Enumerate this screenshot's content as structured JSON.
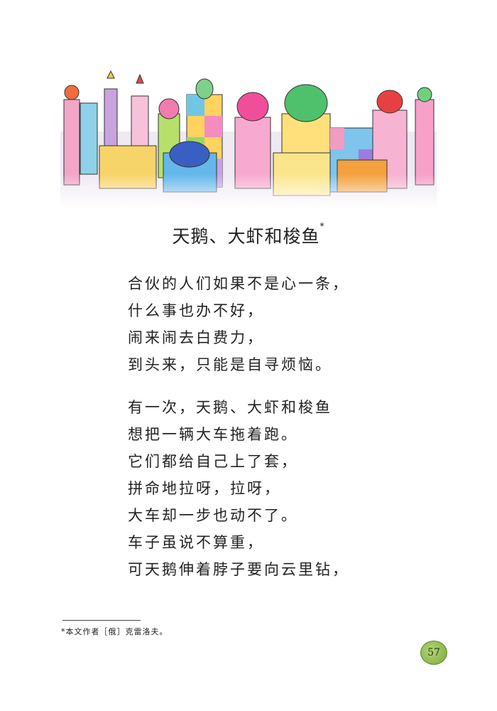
{
  "page": {
    "title": "天鹅、大虾和梭鱼",
    "title_marker": "*",
    "stanzas": [
      {
        "lines": [
          "合伙的人们如果不是心一条，",
          "什么事也办不好，",
          "闹来闹去白费力，",
          "到头来，只能是自寻烦恼。"
        ]
      },
      {
        "lines": [
          "有一次，天鹅、大虾和梭鱼",
          "想把一辆大车拖着跑。",
          "它们都给自己上了套，",
          "拼命地拉呀，拉呀，",
          "大车却一步也动不了。",
          "车子虽说不算重，",
          "可天鹅伸着脖子要向云里钻，"
        ]
      }
    ],
    "footnote": "*本文作者［俄］克雷洛夫。",
    "page_number": "57"
  },
  "colors": {
    "badge": "#8fbf4f",
    "text": "#222222"
  }
}
